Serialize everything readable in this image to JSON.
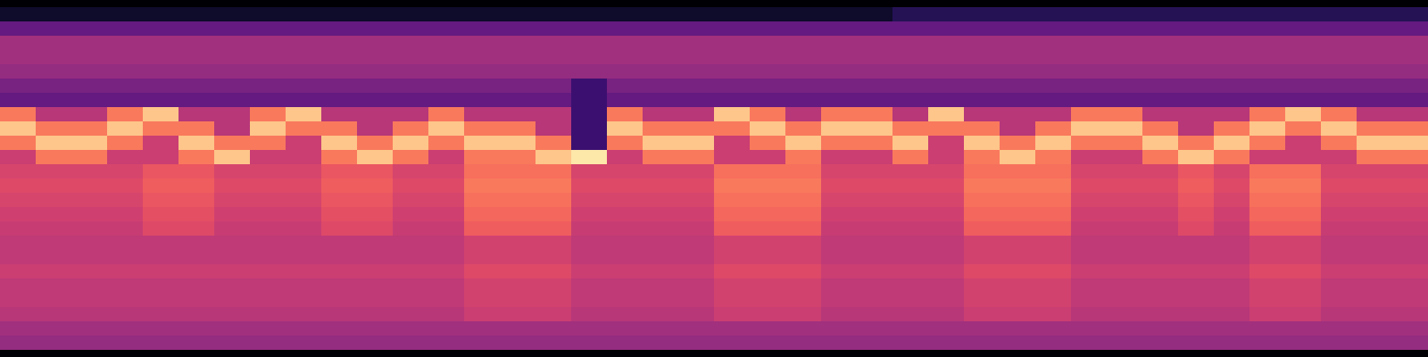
{
  "chart_data": {
    "type": "heatmap",
    "color": "magma",
    "zlim": [
      0,
      100
    ],
    "tick_labels": false,
    "values": [
      [
        8,
        8,
        8,
        8,
        8,
        8,
        8,
        8,
        8,
        8,
        8,
        8,
        8,
        8,
        8,
        8,
        8,
        8,
        8,
        8,
        8,
        8,
        8,
        8,
        8,
        15,
        15,
        15,
        15,
        15,
        15,
        15,
        15,
        15,
        15,
        15,
        15,
        15,
        15,
        15
      ],
      [
        30,
        30,
        30,
        30,
        30,
        30,
        30,
        30,
        30,
        30,
        30,
        30,
        30,
        30,
        30,
        30,
        30,
        30,
        30,
        30,
        30,
        30,
        30,
        30,
        30,
        30,
        30,
        30,
        30,
        30,
        30,
        30,
        30,
        30,
        30,
        30,
        30,
        30,
        30,
        30
      ],
      [
        45,
        45,
        45,
        45,
        45,
        45,
        45,
        45,
        45,
        45,
        45,
        45,
        45,
        45,
        45,
        45,
        45,
        45,
        45,
        45,
        45,
        45,
        45,
        45,
        45,
        45,
        45,
        45,
        45,
        45,
        45,
        45,
        45,
        45,
        45,
        45,
        45,
        45,
        45,
        45
      ],
      [
        45,
        45,
        45,
        45,
        45,
        45,
        45,
        45,
        45,
        45,
        45,
        45,
        45,
        45,
        45,
        45,
        45,
        45,
        45,
        45,
        45,
        45,
        45,
        45,
        45,
        45,
        45,
        45,
        45,
        45,
        45,
        45,
        45,
        45,
        45,
        45,
        45,
        45,
        45,
        45
      ],
      [
        42,
        42,
        42,
        42,
        42,
        42,
        42,
        42,
        42,
        42,
        42,
        42,
        42,
        42,
        42,
        42,
        42,
        42,
        42,
        42,
        42,
        42,
        42,
        42,
        42,
        42,
        42,
        42,
        42,
        42,
        42,
        42,
        42,
        42,
        42,
        42,
        42,
        42,
        42,
        42
      ],
      [
        35,
        35,
        35,
        35,
        35,
        35,
        35,
        35,
        35,
        35,
        35,
        35,
        35,
        35,
        35,
        35,
        20,
        35,
        35,
        35,
        35,
        35,
        35,
        35,
        35,
        35,
        35,
        35,
        35,
        35,
        35,
        35,
        35,
        35,
        35,
        35,
        35,
        35,
        35,
        35
      ],
      [
        30,
        30,
        30,
        30,
        30,
        30,
        30,
        30,
        30,
        30,
        30,
        30,
        30,
        30,
        30,
        30,
        20,
        30,
        30,
        30,
        30,
        30,
        30,
        30,
        30,
        30,
        30,
        30,
        30,
        30,
        30,
        30,
        30,
        30,
        30,
        30,
        30,
        30,
        30,
        30
      ],
      [
        72,
        50,
        50,
        72,
        88,
        50,
        50,
        72,
        88,
        50,
        50,
        50,
        72,
        50,
        50,
        50,
        20,
        72,
        50,
        50,
        88,
        72,
        50,
        72,
        72,
        50,
        88,
        50,
        50,
        50,
        72,
        72,
        50,
        50,
        50,
        72,
        88,
        72,
        50,
        50
      ],
      [
        88,
        72,
        72,
        88,
        72,
        72,
        50,
        88,
        72,
        72,
        50,
        72,
        88,
        72,
        72,
        50,
        20,
        88,
        72,
        72,
        72,
        88,
        72,
        88,
        88,
        72,
        72,
        72,
        50,
        72,
        88,
        88,
        72,
        50,
        72,
        88,
        72,
        88,
        72,
        72
      ],
      [
        72,
        88,
        88,
        72,
        55,
        88,
        72,
        72,
        55,
        88,
        72,
        88,
        72,
        88,
        88,
        72,
        20,
        72,
        88,
        88,
        55,
        72,
        88,
        72,
        72,
        88,
        55,
        88,
        72,
        88,
        72,
        72,
        88,
        72,
        88,
        72,
        55,
        72,
        88,
        88
      ],
      [
        55,
        72,
        72,
        55,
        55,
        72,
        88,
        55,
        55,
        72,
        88,
        72,
        55,
        72,
        72,
        88,
        95,
        55,
        72,
        72,
        55,
        55,
        72,
        55,
        55,
        72,
        55,
        72,
        88,
        72,
        55,
        55,
        72,
        88,
        72,
        55,
        55,
        55,
        72,
        72
      ],
      [
        58,
        58,
        58,
        58,
        64,
        64,
        58,
        58,
        58,
        64,
        64,
        58,
        58,
        70,
        70,
        70,
        58,
        58,
        58,
        58,
        70,
        70,
        70,
        58,
        58,
        58,
        58,
        70,
        70,
        70,
        58,
        58,
        58,
        64,
        58,
        70,
        70,
        58,
        58,
        58
      ],
      [
        60,
        60,
        60,
        60,
        66,
        66,
        60,
        60,
        60,
        66,
        66,
        60,
        60,
        72,
        72,
        72,
        60,
        60,
        60,
        60,
        72,
        72,
        72,
        60,
        60,
        60,
        60,
        72,
        72,
        72,
        60,
        60,
        60,
        66,
        60,
        72,
        72,
        60,
        60,
        60
      ],
      [
        58,
        58,
        58,
        58,
        64,
        64,
        58,
        58,
        58,
        64,
        64,
        58,
        58,
        70,
        70,
        70,
        58,
        58,
        58,
        58,
        70,
        70,
        70,
        58,
        58,
        58,
        58,
        70,
        70,
        70,
        58,
        58,
        58,
        64,
        58,
        70,
        70,
        58,
        58,
        58
      ],
      [
        56,
        56,
        56,
        56,
        62,
        62,
        56,
        56,
        56,
        62,
        62,
        56,
        56,
        68,
        68,
        68,
        56,
        56,
        56,
        56,
        68,
        68,
        68,
        56,
        56,
        56,
        56,
        68,
        68,
        68,
        56,
        56,
        56,
        62,
        56,
        68,
        68,
        56,
        56,
        56
      ],
      [
        54,
        54,
        54,
        54,
        60,
        60,
        54,
        54,
        54,
        60,
        60,
        54,
        54,
        66,
        66,
        66,
        54,
        54,
        54,
        54,
        66,
        66,
        66,
        54,
        54,
        54,
        54,
        66,
        66,
        66,
        54,
        54,
        54,
        60,
        54,
        66,
        66,
        54,
        54,
        54
      ],
      [
        52,
        52,
        52,
        52,
        52,
        52,
        52,
        52,
        52,
        52,
        52,
        52,
        52,
        57,
        57,
        57,
        52,
        52,
        52,
        52,
        57,
        57,
        57,
        52,
        52,
        52,
        52,
        57,
        57,
        57,
        52,
        52,
        52,
        52,
        52,
        57,
        57,
        52,
        52,
        52
      ],
      [
        52,
        52,
        52,
        52,
        52,
        52,
        52,
        52,
        52,
        52,
        52,
        52,
        52,
        57,
        57,
        57,
        52,
        52,
        52,
        52,
        57,
        57,
        57,
        52,
        52,
        52,
        52,
        57,
        57,
        57,
        52,
        52,
        52,
        52,
        52,
        57,
        57,
        52,
        52,
        52
      ],
      [
        55,
        55,
        55,
        55,
        55,
        55,
        55,
        55,
        55,
        55,
        55,
        55,
        55,
        60,
        60,
        60,
        55,
        55,
        55,
        55,
        60,
        60,
        60,
        55,
        55,
        55,
        55,
        60,
        60,
        60,
        55,
        55,
        55,
        55,
        55,
        60,
        60,
        55,
        55,
        55
      ],
      [
        52,
        52,
        52,
        52,
        52,
        52,
        52,
        52,
        52,
        52,
        52,
        52,
        52,
        57,
        57,
        57,
        52,
        52,
        52,
        52,
        57,
        57,
        57,
        52,
        52,
        52,
        52,
        57,
        57,
        57,
        52,
        52,
        52,
        52,
        52,
        57,
        57,
        52,
        52,
        52
      ],
      [
        52,
        52,
        52,
        52,
        52,
        52,
        52,
        52,
        52,
        52,
        52,
        52,
        52,
        57,
        57,
        57,
        52,
        52,
        52,
        52,
        57,
        57,
        57,
        52,
        52,
        52,
        52,
        57,
        57,
        57,
        52,
        52,
        52,
        52,
        52,
        57,
        57,
        52,
        52,
        52
      ],
      [
        50,
        50,
        50,
        50,
        50,
        50,
        50,
        50,
        50,
        50,
        50,
        50,
        50,
        55,
        55,
        55,
        50,
        50,
        50,
        50,
        55,
        55,
        55,
        50,
        50,
        50,
        50,
        55,
        55,
        55,
        50,
        50,
        50,
        50,
        50,
        55,
        55,
        50,
        50,
        50
      ],
      [
        45,
        45,
        45,
        45,
        45,
        45,
        45,
        45,
        45,
        45,
        45,
        45,
        45,
        45,
        45,
        45,
        45,
        45,
        45,
        45,
        45,
        45,
        45,
        45,
        45,
        45,
        45,
        45,
        45,
        45,
        45,
        45,
        45,
        45,
        45,
        45,
        45,
        45,
        45,
        45
      ],
      [
        42,
        42,
        42,
        42,
        42,
        42,
        42,
        42,
        42,
        42,
        42,
        42,
        42,
        42,
        42,
        42,
        42,
        42,
        42,
        42,
        42,
        42,
        42,
        42,
        42,
        42,
        42,
        42,
        42,
        42,
        42,
        42,
        42,
        42,
        42,
        42,
        42,
        42,
        42,
        42
      ]
    ]
  }
}
